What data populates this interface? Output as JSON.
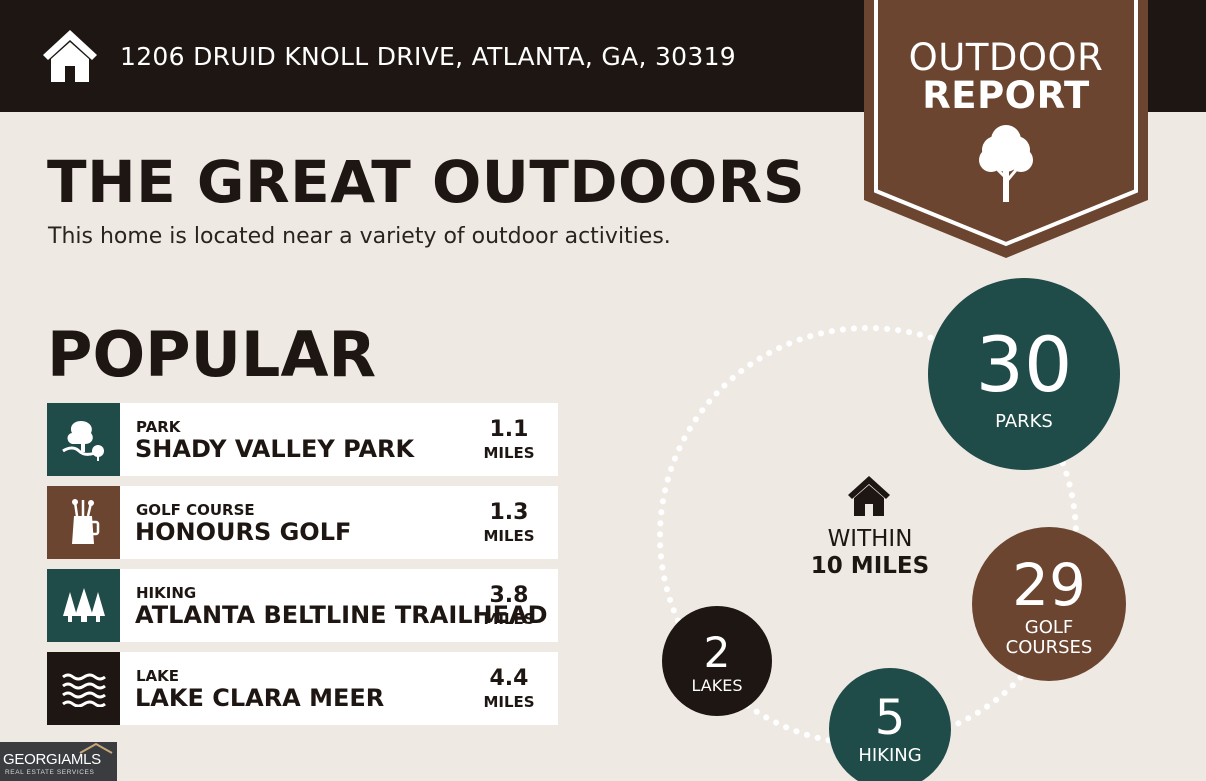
{
  "header": {
    "address": "1206 DRUID KNOLL DRIVE, ATLANTA, GA, 30319",
    "icon": "house-icon"
  },
  "badge": {
    "line1": "OUTDOOR",
    "line2": "REPORT",
    "icon": "tree-icon"
  },
  "hero": {
    "title": "THE GREAT OUTDOORS",
    "subtitle": "This home is located near a variety of outdoor activities."
  },
  "popular": {
    "title": "POPULAR",
    "items": [
      {
        "category": "PARK",
        "name": "SHADY VALLEY PARK",
        "distance": "1.1",
        "unit": "MILES",
        "icon": "park-icon",
        "color": "#1f4b49"
      },
      {
        "category": "GOLF COURSE",
        "name": "HONOURS GOLF",
        "distance": "1.3",
        "unit": "MILES",
        "icon": "golf-bag-icon",
        "color": "#6b452f"
      },
      {
        "category": "HIKING",
        "name": "ATLANTA BELTLINE TRAILHEAD",
        "distance": "3.8",
        "unit": "MILES",
        "icon": "pine-trees-icon",
        "color": "#1f4b49"
      },
      {
        "category": "LAKE",
        "name": "LAKE CLARA MEER",
        "distance": "4.4",
        "unit": "MILES",
        "icon": "waves-icon",
        "color": "#1e1612"
      }
    ]
  },
  "summary": {
    "within_line1": "WITHIN",
    "within_line2": "10 MILES",
    "icon": "house-icon",
    "stats": [
      {
        "count": "30",
        "label": "PARKS",
        "color": "#1f4b49"
      },
      {
        "count": "29",
        "label": "GOLF COURSES",
        "label_line1": "GOLF",
        "label_line2": "COURSES",
        "color": "#6b452f"
      },
      {
        "count": "5",
        "label": "HIKING",
        "color": "#1f4b49"
      },
      {
        "count": "2",
        "label": "LAKES",
        "color": "#1e1612"
      }
    ]
  },
  "logo": {
    "line1": "GEORGIAMLS",
    "line2": "REAL ESTATE SERVICES"
  },
  "colors": {
    "background": "#efe9e4",
    "dark": "#1e1612",
    "teal": "#1f4b49",
    "brown": "#6b452f"
  }
}
